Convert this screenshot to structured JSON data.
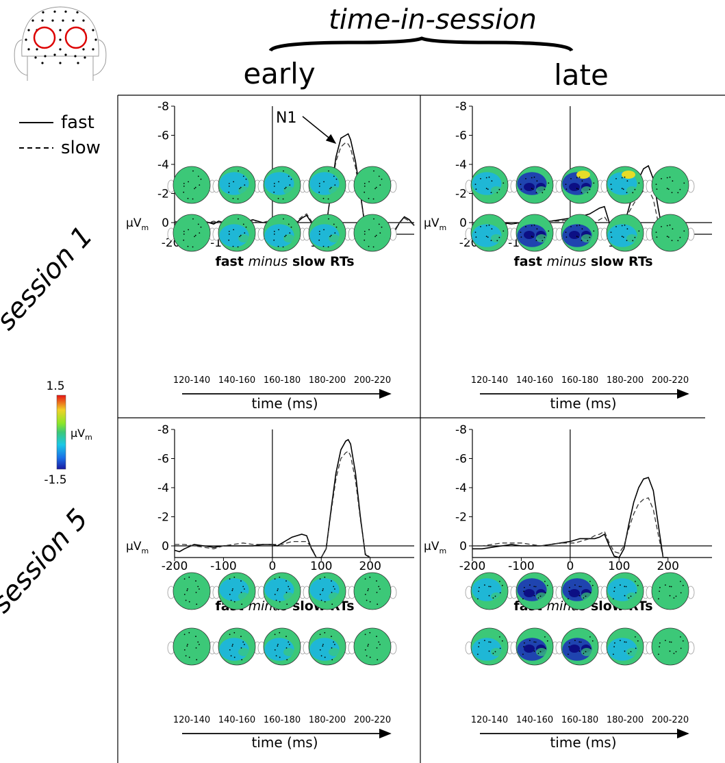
{
  "header": {
    "title": "time-in-session",
    "col_labels": [
      "early",
      "late"
    ]
  },
  "rows": [
    "session 1",
    "session 5"
  ],
  "legend": {
    "fast": "fast",
    "slow": "slow"
  },
  "colorbar": {
    "max": "1.5",
    "min": "-1.5",
    "unit": "µV",
    "unit_sub": "m"
  },
  "topo_caption": {
    "pre": "fast ",
    "em": "minus",
    "post": " slow RTs"
  },
  "time_label": "time (ms)",
  "time_windows": [
    "120-140",
    "140-160",
    "160-180",
    "180-200",
    "200-220"
  ],
  "annotation": "N1",
  "colors": {
    "cool_deep": "#1a2db8",
    "cool": "#1ab4e6",
    "neutral": "#3cc878",
    "warm": "#e6dc28",
    "hot": "#e63c14"
  },
  "chart_data": [
    {
      "type": "line",
      "panel": "session 1 / early",
      "ylabel": "µV",
      "ylabel_sub": "m",
      "xlim": [
        -200,
        290
      ],
      "ylim": [
        -8,
        1
      ],
      "xticks": [
        -200,
        -100,
        0,
        100,
        200
      ],
      "yticks": [
        -8,
        -6,
        -4,
        -2,
        0
      ],
      "grid": false,
      "y_inverted": true,
      "series": [
        {
          "name": "fast",
          "x": [
            -200,
            -190,
            -180,
            -170,
            -160,
            -150,
            -140,
            -130,
            -120,
            -110,
            -100,
            -90,
            -80,
            -70,
            -60,
            -50,
            -40,
            -30,
            -20,
            -10,
            0,
            10,
            20,
            30,
            40,
            50,
            60,
            70,
            80,
            90,
            100,
            110,
            120,
            130,
            140,
            150,
            155,
            160,
            170,
            180,
            190,
            200,
            210,
            220,
            230,
            240,
            250,
            260,
            270,
            280,
            290
          ],
          "y": [
            0.1,
            0.4,
            0.4,
            0.1,
            0,
            0.1,
            -0.1,
            0,
            0.1,
            -0.1,
            0,
            0.1,
            -0.1,
            0,
            0,
            -0.1,
            -0.2,
            -0.1,
            0,
            0,
            -0.1,
            0,
            0,
            0,
            0.1,
            0,
            -0.3,
            -0.5,
            0,
            1.3,
            1.7,
            0.3,
            -2.2,
            -4.5,
            -5.8,
            -6.0,
            -6.1,
            -5.7,
            -4.2,
            -2.0,
            0.4,
            1.7,
            2.0,
            1.8,
            1.5,
            1.0,
            0.6,
            0,
            -0.4,
            -0.2,
            0.2
          ]
        },
        {
          "name": "slow",
          "x": [
            -200,
            -190,
            -180,
            -170,
            -160,
            -150,
            -140,
            -130,
            -120,
            -110,
            -100,
            -90,
            -80,
            -70,
            -60,
            -50,
            -40,
            -30,
            -20,
            -10,
            0,
            10,
            20,
            30,
            40,
            50,
            60,
            70,
            80,
            90,
            100,
            110,
            120,
            130,
            140,
            150,
            155,
            160,
            170,
            180,
            190,
            200,
            210,
            220,
            230,
            240,
            250,
            260,
            270,
            280,
            290
          ],
          "y": [
            -0.1,
            0,
            0.1,
            0.1,
            0,
            -0.1,
            0,
            0,
            -0.1,
            0,
            0,
            0,
            -0.1,
            -0.1,
            0,
            0,
            -0.1,
            0,
            0,
            -0.1,
            0,
            0,
            0,
            0,
            -0.1,
            -0.1,
            -0.4,
            -0.6,
            -0.1,
            1.0,
            1.3,
            0.1,
            -2.1,
            -4.2,
            -5.2,
            -5.5,
            -5.4,
            -5.1,
            -3.8,
            -1.8,
            0.3,
            1.5,
            1.8,
            1.6,
            1.4,
            0.9,
            0.5,
            0,
            -0.3,
            -0.1,
            0.2
          ]
        }
      ]
    },
    {
      "type": "line",
      "panel": "session 1 / late",
      "ylabel": "µV",
      "ylabel_sub": "m",
      "xlim": [
        -200,
        290
      ],
      "ylim": [
        -8,
        1
      ],
      "xticks": [
        -200,
        -100,
        0,
        100,
        200
      ],
      "yticks": [
        -8,
        -6,
        -4,
        -2,
        0
      ],
      "grid": false,
      "y_inverted": true,
      "series": [
        {
          "name": "fast",
          "x": [
            -200,
            -180,
            -160,
            -140,
            -120,
            -100,
            -80,
            -60,
            -40,
            -20,
            0,
            10,
            20,
            30,
            40,
            50,
            60,
            70,
            80,
            90,
            100,
            110,
            120,
            130,
            140,
            150,
            160,
            170,
            180,
            190,
            200
          ],
          "y": [
            0.2,
            0.3,
            0.1,
            0,
            0.1,
            0,
            0,
            -0.1,
            -0.1,
            -0.2,
            -0.3,
            -0.4,
            -0.5,
            -0.5,
            -0.6,
            -0.8,
            -1.0,
            -1.1,
            0,
            0.7,
            0.8,
            0.2,
            -1.0,
            -2.2,
            -3.0,
            -3.7,
            -3.9,
            -3.0,
            -1.0,
            1.5,
            2.5
          ]
        },
        {
          "name": "slow",
          "x": [
            -200,
            -180,
            -160,
            -140,
            -120,
            -100,
            -80,
            -60,
            -40,
            -20,
            0,
            10,
            20,
            30,
            40,
            50,
            60,
            70,
            80,
            90,
            100,
            110,
            120,
            130,
            140,
            150,
            160,
            170,
            180,
            190,
            200
          ],
          "y": [
            0,
            0,
            -0.1,
            0.1,
            0.1,
            0,
            -0.1,
            -0.1,
            -0.1,
            -0.1,
            -0.2,
            -0.2,
            -0.1,
            0,
            0.1,
            0,
            -0.2,
            -0.4,
            0.1,
            0.6,
            0.7,
            0.1,
            -0.7,
            -1.3,
            -1.8,
            -2.2,
            -2.3,
            -1.6,
            0,
            1.8,
            2.6
          ]
        }
      ]
    },
    {
      "type": "line",
      "panel": "session 5 / early",
      "ylabel": "µV",
      "ylabel_sub": "m",
      "xlim": [
        -200,
        290
      ],
      "ylim": [
        -8,
        1
      ],
      "xticks": [
        -200,
        -100,
        0,
        100,
        200
      ],
      "yticks": [
        -8,
        -6,
        -4,
        -2,
        0
      ],
      "grid": false,
      "y_inverted": true,
      "series": [
        {
          "name": "fast",
          "x": [
            -200,
            -190,
            -180,
            -160,
            -140,
            -120,
            -100,
            -80,
            -60,
            -40,
            -20,
            0,
            10,
            20,
            30,
            40,
            50,
            60,
            70,
            80,
            90,
            100,
            110,
            120,
            130,
            140,
            150,
            155,
            160,
            170,
            180,
            190,
            200
          ],
          "y": [
            0.3,
            0.4,
            0.2,
            -0.1,
            0,
            0.1,
            0,
            0,
            0,
            0,
            -0.1,
            -0.1,
            0,
            -0.2,
            -0.4,
            -0.6,
            -0.7,
            -0.8,
            -0.7,
            0.2,
            1.1,
            1.3,
            0.2,
            -2.5,
            -5.0,
            -6.6,
            -7.2,
            -7.3,
            -7.0,
            -5.0,
            -2.0,
            0.6,
            2.0
          ]
        },
        {
          "name": "slow",
          "x": [
            -200,
            -190,
            -180,
            -160,
            -140,
            -120,
            -100,
            -80,
            -60,
            -40,
            -20,
            0,
            10,
            20,
            30,
            40,
            50,
            60,
            70,
            80,
            90,
            100,
            110,
            120,
            130,
            140,
            150,
            155,
            160,
            170,
            180,
            190,
            200
          ],
          "y": [
            -0.1,
            -0.1,
            -0.1,
            0,
            0.1,
            0.2,
            0,
            -0.1,
            -0.2,
            -0.1,
            -0.1,
            -0.1,
            -0.1,
            -0.1,
            -0.2,
            -0.3,
            -0.3,
            -0.3,
            -0.3,
            0.1,
            0.9,
            1.1,
            0.2,
            -2.3,
            -4.6,
            -6.0,
            -6.4,
            -6.5,
            -6.2,
            -4.5,
            -1.8,
            0.5,
            1.9
          ]
        }
      ]
    },
    {
      "type": "line",
      "panel": "session 5 / late",
      "ylabel": "µV",
      "ylabel_sub": "m",
      "xlim": [
        -200,
        290
      ],
      "ylim": [
        -8,
        1
      ],
      "xticks": [
        -200,
        -100,
        0,
        100,
        200
      ],
      "yticks": [
        -8,
        -6,
        -4,
        -2,
        0
      ],
      "grid": false,
      "y_inverted": true,
      "series": [
        {
          "name": "fast",
          "x": [
            -200,
            -180,
            -160,
            -140,
            -120,
            -100,
            -80,
            -60,
            -40,
            -20,
            0,
            10,
            20,
            30,
            40,
            50,
            60,
            70,
            80,
            90,
            100,
            110,
            120,
            130,
            140,
            150,
            160,
            170,
            180,
            190,
            200
          ],
          "y": [
            0.2,
            0.2,
            0.1,
            0,
            -0.1,
            0,
            0,
            0,
            -0.1,
            -0.2,
            -0.3,
            -0.4,
            -0.5,
            -0.5,
            -0.5,
            -0.5,
            -0.6,
            -0.8,
            0,
            0.7,
            0.8,
            0.2,
            -1.5,
            -3.0,
            -4.0,
            -4.6,
            -4.7,
            -3.8,
            -1.5,
            0.8,
            2.0
          ]
        },
        {
          "name": "slow",
          "x": [
            -200,
            -180,
            -160,
            -140,
            -120,
            -100,
            -80,
            -60,
            -40,
            -20,
            0,
            10,
            20,
            30,
            40,
            50,
            60,
            70,
            80,
            90,
            100,
            110,
            120,
            130,
            140,
            150,
            160,
            170,
            180,
            190,
            200
          ],
          "y": [
            0,
            0,
            -0.1,
            -0.2,
            -0.2,
            -0.2,
            -0.1,
            0,
            -0.1,
            -0.2,
            -0.2,
            -0.2,
            -0.3,
            -0.4,
            -0.5,
            -0.7,
            -0.8,
            -1.0,
            -0.2,
            0.4,
            0.5,
            0,
            -1.2,
            -2.2,
            -2.9,
            -3.2,
            -3.3,
            -2.5,
            -0.8,
            1.0,
            2.1
          ]
        }
      ]
    }
  ]
}
